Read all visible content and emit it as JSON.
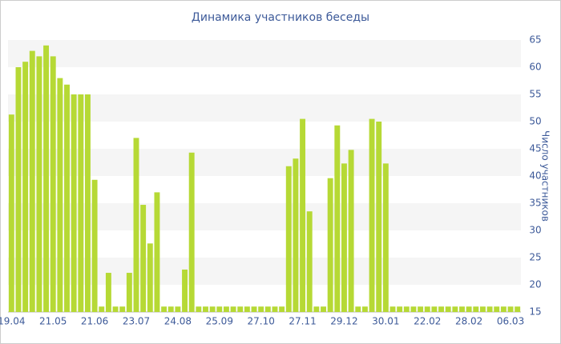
{
  "chart_data": {
    "type": "bar",
    "title": "Динамика участников беседы",
    "y_label": "Число участников",
    "categories": [
      "19.04",
      null,
      null,
      null,
      null,
      null,
      "21.05",
      null,
      null,
      null,
      null,
      null,
      "21.06",
      null,
      null,
      null,
      null,
      null,
      "23.07",
      null,
      null,
      null,
      null,
      null,
      "24.08",
      null,
      null,
      null,
      null,
      null,
      "25.09",
      null,
      null,
      null,
      null,
      null,
      "27.10",
      null,
      null,
      null,
      null,
      null,
      "27.11",
      null,
      null,
      null,
      null,
      null,
      "29.12",
      null,
      null,
      null,
      null,
      null,
      "30.01",
      null,
      null,
      null,
      null,
      null,
      "22.02",
      null,
      null,
      null,
      null,
      null,
      "28.02",
      null,
      null,
      null,
      null,
      null,
      "06.03",
      null
    ],
    "values": [
      51.3,
      60,
      61,
      63,
      62,
      64,
      62,
      58,
      56.8,
      55,
      55,
      55,
      39.3,
      16,
      22.2,
      16,
      16,
      22.2,
      47,
      34.7,
      27.6,
      37,
      16,
      16,
      16,
      22.8,
      44.3,
      16,
      16,
      16,
      16,
      16,
      16,
      16,
      16,
      16,
      16,
      16,
      16,
      16,
      41.8,
      43.2,
      50.5,
      33.5,
      16,
      16,
      39.6,
      49.3,
      42.3,
      44.8,
      16,
      16,
      50.5,
      50,
      42.3,
      16,
      16,
      16,
      16,
      16,
      16,
      16,
      16,
      16,
      16,
      16,
      16,
      16,
      16,
      16,
      16,
      16,
      16,
      16
    ],
    "color": "#b6d935",
    "ylim": [
      15,
      65
    ],
    "yticks": [
      15,
      20,
      25,
      30,
      35,
      40,
      45,
      50,
      55,
      60,
      65
    ],
    "y_axis_side": "right",
    "grid": "bands"
  }
}
